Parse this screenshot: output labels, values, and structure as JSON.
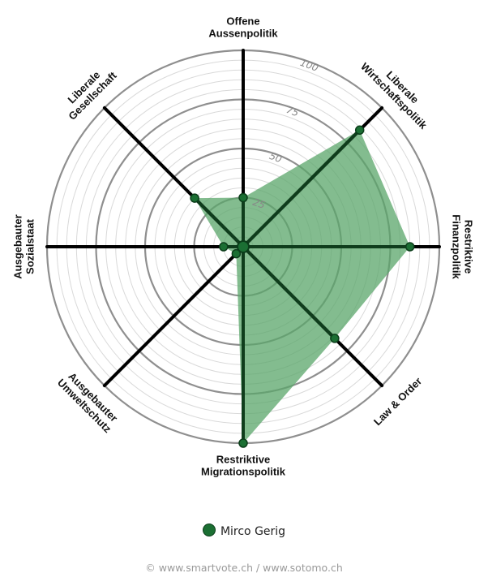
{
  "chart_data": {
    "type": "radar",
    "axes": [
      {
        "label": [
          "Offene",
          "Aussenpolitik"
        ]
      },
      {
        "label": [
          "Liberale",
          "Wirtschaftspolitik"
        ]
      },
      {
        "label": [
          "Restriktive",
          "Finanzpolitik"
        ]
      },
      {
        "label": [
          "Law & Order"
        ]
      },
      {
        "label": [
          "Restriktive",
          "Migrationspolitik"
        ]
      },
      {
        "label": [
          "Ausgebauter",
          "Umweltschutz"
        ]
      },
      {
        "label": [
          "Ausgebauter",
          "Sozialstaat"
        ]
      },
      {
        "label": [
          "Liberale",
          "Gesellschaft"
        ]
      }
    ],
    "rlim": [
      0,
      100
    ],
    "ticks": [
      "25",
      "50",
      "75",
      "100"
    ],
    "series": [
      {
        "name": "Mirco Gerig",
        "color": "#1b6f33",
        "fill": "#5aa66a",
        "values": [
          25,
          84,
          85,
          66,
          100,
          5,
          10,
          35
        ]
      }
    ],
    "grid": true,
    "legend": "bottom"
  },
  "legend": {
    "label": "Mirco Gerig"
  },
  "footer": {
    "credit": "© www.smartvote.ch / www.sotomo.ch"
  }
}
